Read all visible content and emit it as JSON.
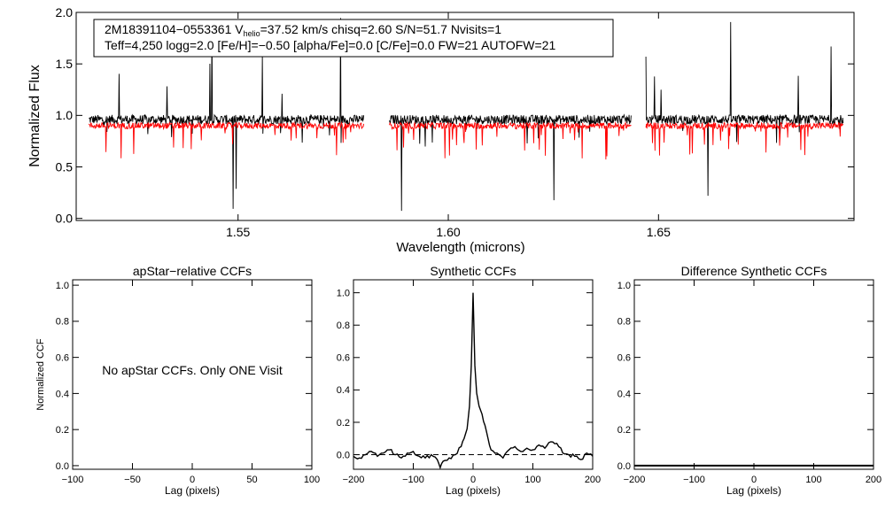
{
  "chart_data": [
    {
      "type": "line",
      "id": "spectrum",
      "title": "",
      "xlabel": "Wavelength (microns)",
      "ylabel": "Normalized Flux",
      "xlim": [
        1.5115,
        1.6965
      ],
      "ylim": [
        -0.02,
        2.0
      ],
      "xticks": [
        1.55,
        1.6,
        1.65
      ],
      "xtick_labels": [
        "1.55",
        "1.60",
        "1.65"
      ],
      "yticks": [
        0.0,
        0.5,
        1.0,
        1.5,
        2.0
      ],
      "ytick_labels": [
        "0.0",
        "0.5",
        "1.0",
        "1.5",
        "2.0"
      ],
      "chips": [
        [
          1.5145,
          1.58
        ],
        [
          1.586,
          1.6435
        ],
        [
          1.647,
          1.694
        ]
      ],
      "series": [
        {
          "name": "observed",
          "color": "#000000",
          "baseline": 0.96,
          "noise": 0.045
        },
        {
          "name": "synthetic",
          "color": "#ff0000",
          "baseline": 0.9,
          "noise": 0.03
        }
      ],
      "annotation": {
        "line1_prefix": "2M18391104−0553361  V",
        "line1_sub": "helio",
        "line1_suffix": "=37.52 km/s  chisq=2.60  S/N=51.7  Nvisits=1",
        "line2": "Teff=4,250 logg=2.0 [Fe/H]=−0.50 [alpha/Fe]=0.0 [C/Fe]=0.0 FW=21 AUTOFW=21"
      }
    },
    {
      "type": "line",
      "id": "apstar",
      "title": "apStar−relative CCFs",
      "xlabel": "Lag (pixels)",
      "ylabel": "Normalized CCF",
      "xlim": [
        -100,
        100
      ],
      "ylim": [
        -0.02,
        1.03
      ],
      "xticks": [
        -100,
        -50,
        0,
        50,
        100
      ],
      "xtick_labels": [
        "−100",
        "−50",
        "0",
        "50",
        "100"
      ],
      "yticks": [
        0.0,
        0.2,
        0.4,
        0.6,
        0.8,
        1.0
      ],
      "ytick_labels": [
        "0.0",
        "0.2",
        "0.4",
        "0.6",
        "0.8",
        "1.0"
      ],
      "message": "No apStar CCFs.  Only ONE Visit",
      "series": []
    },
    {
      "type": "line",
      "id": "synthetic",
      "title": "Synthetic CCFs",
      "xlabel": "Lag (pixels)",
      "ylabel": "",
      "xlim": [
        -200,
        200
      ],
      "ylim": [
        -0.09,
        1.08
      ],
      "xticks": [
        -200,
        -100,
        0,
        100,
        200
      ],
      "xtick_labels": [
        "−200",
        "−100",
        "0",
        "100",
        "200"
      ],
      "yticks": [
        0.0,
        0.2,
        0.4,
        0.6,
        0.8,
        1.0
      ],
      "ytick_labels": [
        "0.0",
        "0.2",
        "0.4",
        "0.6",
        "0.8",
        "1.0"
      ],
      "dashed_zero": true,
      "series": [
        {
          "name": "ccf",
          "x": [
            -200,
            -190,
            -180,
            -170,
            -160,
            -150,
            -140,
            -130,
            -120,
            -110,
            -100,
            -90,
            -80,
            -70,
            -60,
            -55,
            -50,
            -40,
            -30,
            -20,
            -15,
            -10,
            -6,
            -3,
            -1,
            0,
            1,
            3,
            6,
            10,
            15,
            20,
            25,
            30,
            40,
            50,
            60,
            70,
            80,
            90,
            100,
            110,
            120,
            130,
            140,
            150,
            160,
            170,
            180,
            190,
            200
          ],
          "y": [
            -0.01,
            -0.02,
            0.0,
            0.02,
            -0.01,
            0.01,
            0.03,
            0.0,
            -0.02,
            0.01,
            0.02,
            -0.01,
            -0.02,
            0.0,
            -0.03,
            -0.08,
            -0.04,
            -0.02,
            0.0,
            0.05,
            0.1,
            0.16,
            0.3,
            0.55,
            0.85,
            1.0,
            0.85,
            0.55,
            0.38,
            0.3,
            0.25,
            0.18,
            0.1,
            0.03,
            0.01,
            -0.02,
            0.03,
            0.05,
            0.02,
            0.04,
            0.03,
            0.06,
            0.04,
            0.08,
            0.07,
            0.01,
            0.0,
            -0.01,
            -0.03,
            0.01,
            -0.01
          ]
        }
      ]
    },
    {
      "type": "line",
      "id": "difference",
      "title": "Difference Synthetic CCFs",
      "xlabel": "Lag (pixels)",
      "ylabel": "",
      "xlim": [
        -200,
        200
      ],
      "ylim": [
        -0.02,
        1.03
      ],
      "xticks": [
        -200,
        -100,
        0,
        100,
        200
      ],
      "xtick_labels": [
        "−200",
        "−100",
        "0",
        "100",
        "200"
      ],
      "yticks": [
        0.0,
        0.2,
        0.4,
        0.6,
        0.8,
        1.0
      ],
      "ytick_labels": [
        "0.0",
        "0.2",
        "0.4",
        "0.6",
        "0.8",
        "1.0"
      ],
      "series": [
        {
          "name": "difference",
          "x": [
            -200,
            200
          ],
          "y": [
            0.0,
            0.0
          ]
        }
      ]
    }
  ]
}
